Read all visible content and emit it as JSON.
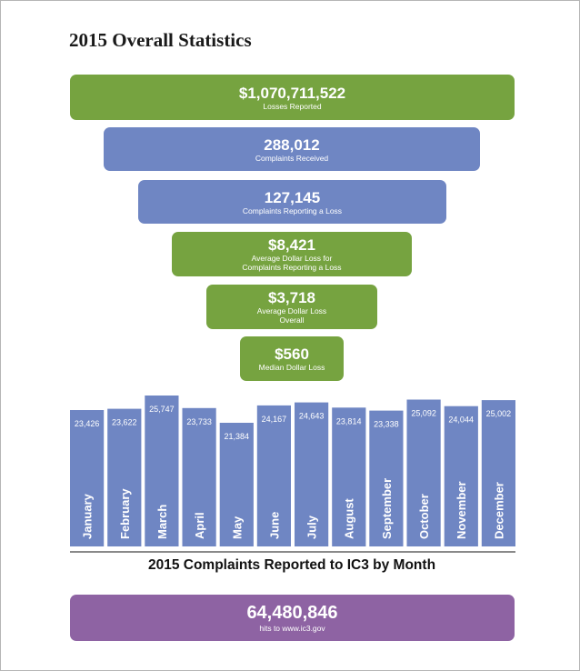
{
  "page_title": "2015 Overall Statistics",
  "funnel": [
    {
      "value": "$1,070,711,522",
      "label": "Losses Reported",
      "color": "#76a340"
    },
    {
      "value": "288,012",
      "label": "Complaints Received",
      "color": "#6f86c3"
    },
    {
      "value": "127,145",
      "label": "Complaints Reporting a Loss",
      "color": "#6f86c3"
    },
    {
      "value": "$8,421",
      "label_line1": "Average Dollar Loss for",
      "label_line2": "Complaints Reporting a Loss",
      "color": "#76a340"
    },
    {
      "value": "$3,718",
      "label_line1": "Average Dollar Loss",
      "label_line2": "Overall",
      "color": "#76a340"
    },
    {
      "value": "$560",
      "label": "Median Dollar Loss",
      "color": "#76a340"
    }
  ],
  "chart_data": {
    "type": "bar",
    "title": "2015 Complaints Reported to IC3 by Month",
    "xlabel": "",
    "ylabel": "",
    "categories": [
      "January",
      "February",
      "March",
      "April",
      "May",
      "June",
      "July",
      "August",
      "September",
      "October",
      "November",
      "December"
    ],
    "values": [
      23426,
      23622,
      25747,
      23733,
      21384,
      24167,
      24643,
      23814,
      23338,
      25092,
      24044,
      25002
    ],
    "value_labels": [
      "23,426",
      "23,622",
      "25,747",
      "23,733",
      "21,384",
      "24,167",
      "24,643",
      "23,814",
      "23,338",
      "25,092",
      "24,044",
      "25,002"
    ],
    "ylim": [
      0,
      28000
    ],
    "bar_color": "#6f86c3",
    "grid": false,
    "legend": "none"
  },
  "hits": {
    "value": "64,480,846",
    "label": "hits to www.ic3.gov",
    "color": "#8e63a3"
  }
}
